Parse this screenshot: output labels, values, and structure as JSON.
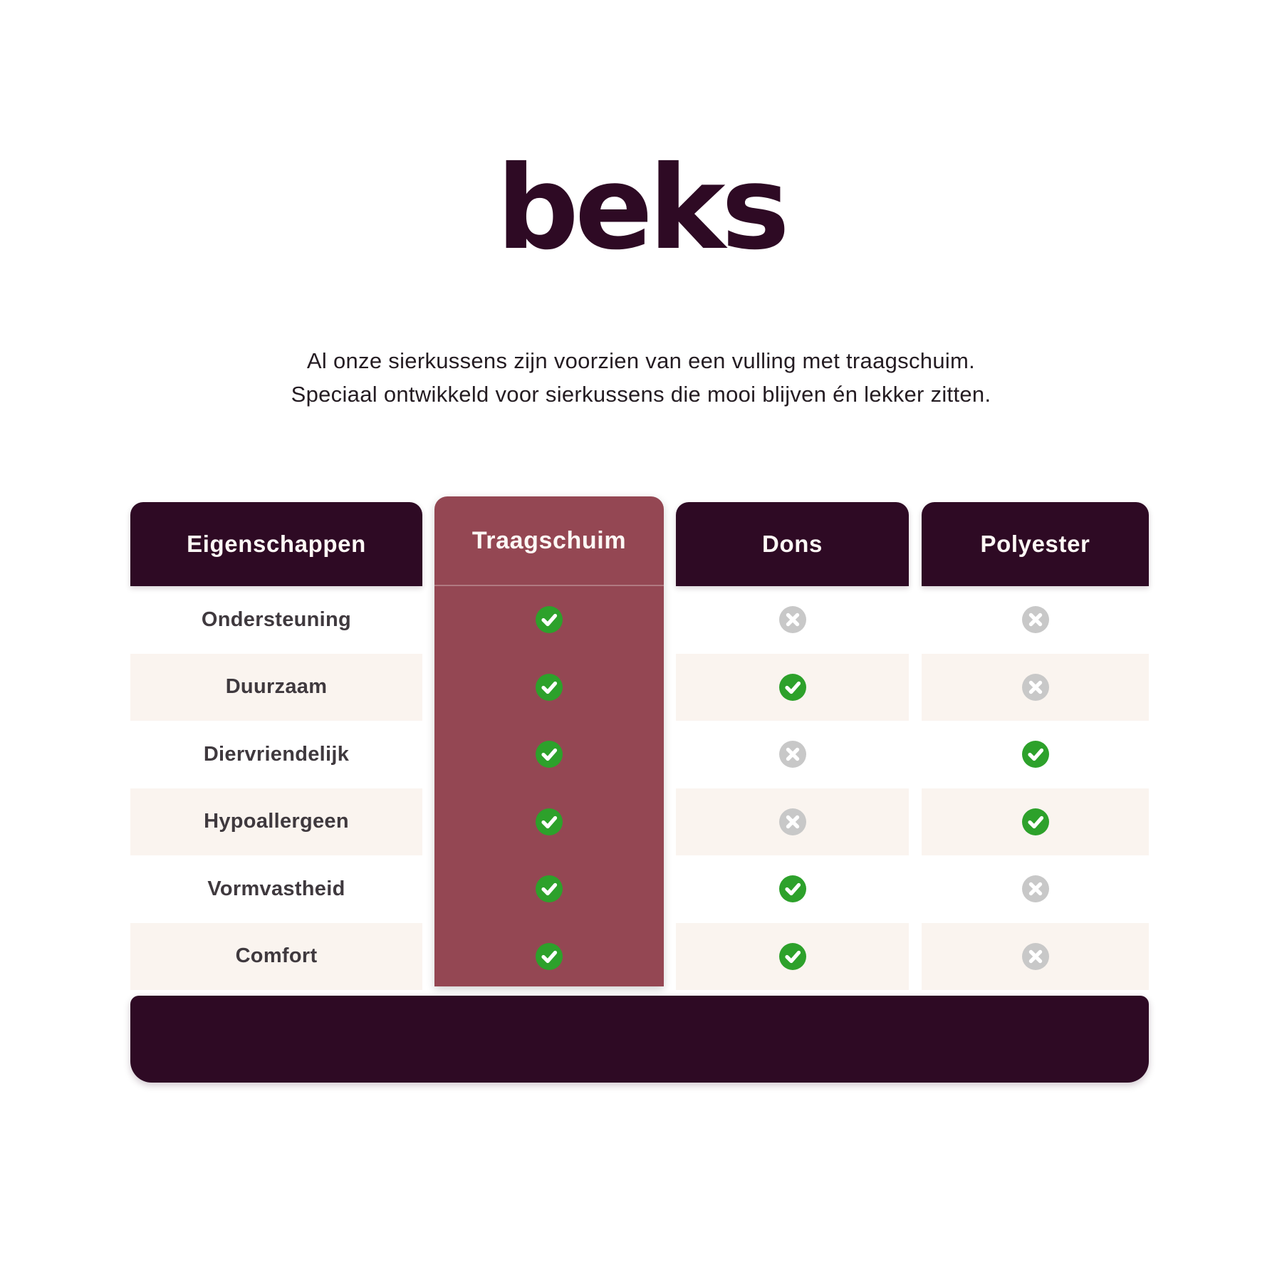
{
  "brand": {
    "logo": "beks"
  },
  "intro": {
    "line1": "Al onze sierkussens zijn voorzien van een vulling met traagschuim.",
    "line2": "Speciaal ontwikkeld voor sierkussens die mooi blijven én lekker zitten."
  },
  "table": {
    "columns": [
      {
        "label": "Eigenschappen"
      },
      {
        "label": "Traagschuim",
        "highlighted": true
      },
      {
        "label": "Dons"
      },
      {
        "label": "Polyester"
      }
    ],
    "rows": [
      {
        "label": "Ondersteuning",
        "values": [
          true,
          false,
          false
        ]
      },
      {
        "label": "Duurzaam",
        "values": [
          true,
          true,
          false
        ]
      },
      {
        "label": "Diervriendelijk",
        "values": [
          true,
          false,
          true
        ]
      },
      {
        "label": "Hypoallergeen",
        "values": [
          true,
          false,
          true
        ]
      },
      {
        "label": "Vormvastheid",
        "values": [
          true,
          true,
          false
        ]
      },
      {
        "label": "Comfort",
        "values": [
          true,
          true,
          false
        ]
      }
    ]
  },
  "chart_data": {
    "type": "table",
    "title": "beks",
    "columns": [
      "Eigenschappen",
      "Traagschuim",
      "Dons",
      "Polyester"
    ],
    "rows": [
      [
        "Ondersteuning",
        "yes",
        "no",
        "no"
      ],
      [
        "Duurzaam",
        "yes",
        "yes",
        "no"
      ],
      [
        "Diervriendelijk",
        "yes",
        "no",
        "yes"
      ],
      [
        "Hypoallergeen",
        "yes",
        "no",
        "yes"
      ],
      [
        "Vormvastheid",
        "yes",
        "yes",
        "no"
      ],
      [
        "Comfort",
        "yes",
        "yes",
        "no"
      ]
    ],
    "legend": {
      "yes": "green check circle",
      "no": "gray cross circle"
    }
  },
  "colors": {
    "dark": "#2e0a24",
    "maroon": "#944753",
    "cream": "#faf4ef",
    "green": "#2da12b",
    "gray": "#c8c8c8"
  }
}
